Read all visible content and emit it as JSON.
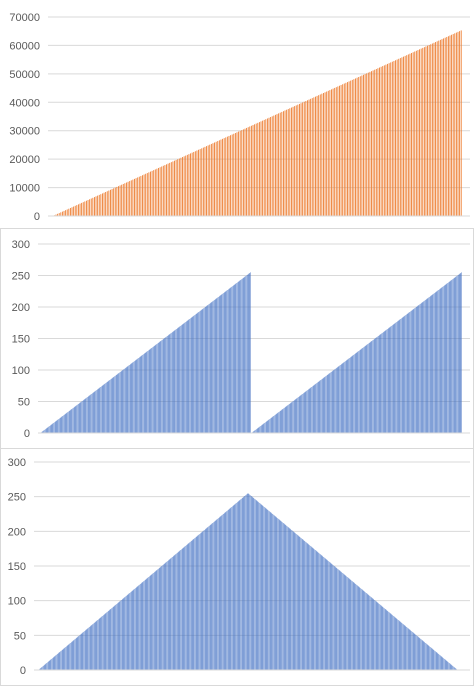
{
  "chart_data": [
    {
      "type": "bar",
      "title": "",
      "xlabel": "",
      "ylabel": "",
      "ylim": [
        0,
        70000
      ],
      "yticks": [
        0,
        10000,
        20000,
        30000,
        40000,
        50000,
        60000,
        70000
      ],
      "grid": true,
      "legend": "none",
      "bar_color": "#ED7D31",
      "n_bars": 256,
      "series": [
        {
          "pattern": "linear-ramp",
          "start": 0,
          "end": 65280,
          "step": 256
        }
      ]
    },
    {
      "type": "bar",
      "title": "",
      "xlabel": "",
      "ylabel": "",
      "ylim": [
        0,
        300
      ],
      "yticks": [
        0,
        50,
        100,
        150,
        200,
        250,
        300
      ],
      "grid": true,
      "legend": "none",
      "bar_color": "#4472C4",
      "n_bars": 512,
      "series": [
        {
          "pattern": "sawtooth",
          "start": 0,
          "end": 255,
          "periods": 2
        }
      ]
    },
    {
      "type": "bar",
      "title": "",
      "xlabel": "",
      "ylabel": "",
      "ylim": [
        0,
        300
      ],
      "yticks": [
        0,
        50,
        100,
        150,
        200,
        250,
        300
      ],
      "grid": true,
      "legend": "none",
      "bar_color": "#4472C4",
      "n_bars": 511,
      "series": [
        {
          "pattern": "triangle",
          "start": 0,
          "peak": 255,
          "end": 0
        }
      ]
    }
  ]
}
